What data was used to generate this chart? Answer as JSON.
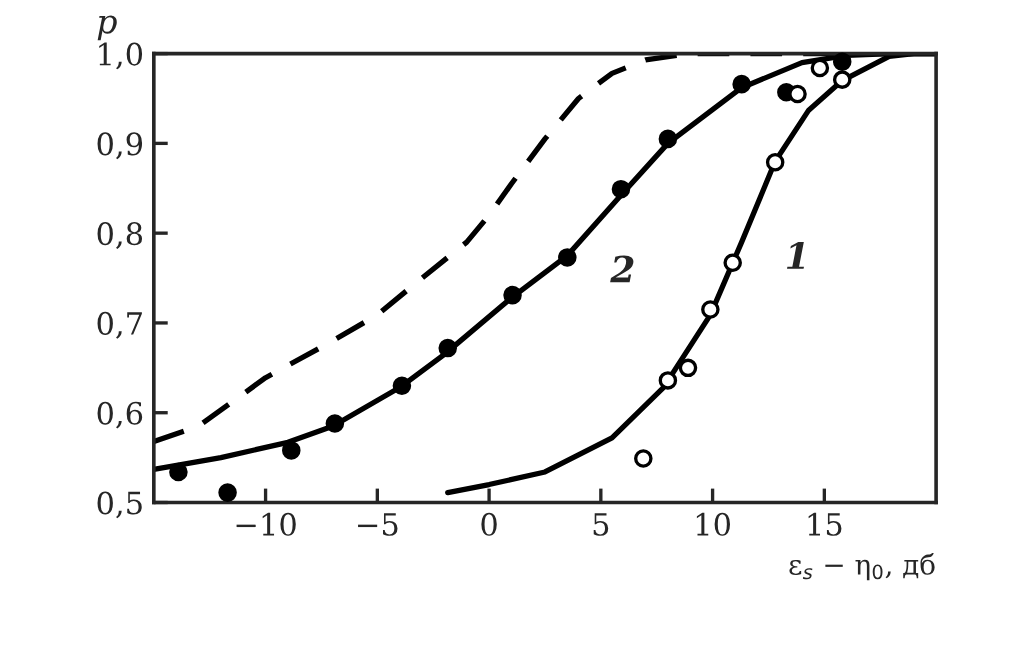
{
  "chart_data": {
    "type": "line",
    "xlabel": "ε$_{s}$ − η$_{0}$, дб",
    "ylabel": "p",
    "xlim": [
      -15,
      20
    ],
    "ylim": [
      0.5,
      1.0
    ],
    "xticks": [
      {
        "value": -10,
        "label": "−10"
      },
      {
        "value": -5,
        "label": "−5"
      },
      0,
      5,
      10,
      15
    ],
    "yticks": [
      {
        "value": 0.5,
        "label": "0,5"
      },
      {
        "value": 0.6,
        "label": "0,6"
      },
      {
        "value": 0.7,
        "label": "0,7"
      },
      {
        "value": 0.8,
        "label": "0,8"
      },
      {
        "value": 0.9,
        "label": "0,9"
      },
      {
        "value": 1.0,
        "label": "1,0"
      }
    ],
    "grid": false,
    "series": [
      {
        "line_style": "dashed",
        "color": "#000000",
        "x": [
          -15,
          -13,
          -10,
          -7,
          -5,
          -3,
          -1,
          0,
          1,
          2.5,
          4,
          5.5,
          7,
          9,
          20
        ],
        "values": [
          0.568,
          0.585,
          0.639,
          0.68,
          0.709,
          0.75,
          0.79,
          0.82,
          0.855,
          0.905,
          0.95,
          0.978,
          0.993,
          1.0,
          1.0
        ]
      },
      {
        "name": "2",
        "line_style": "solid",
        "color": "#000000",
        "x": [
          -15,
          -12,
          -9,
          -7,
          -4,
          -2,
          1,
          3.5,
          6,
          8,
          11.3,
          14,
          16,
          18,
          20
        ],
        "values": [
          0.537,
          0.55,
          0.567,
          0.585,
          0.628,
          0.665,
          0.728,
          0.775,
          0.845,
          0.9,
          0.962,
          0.99,
          0.998,
          1.0,
          1.0
        ]
      },
      {
        "name": "1",
        "line_style": "solid",
        "color": "#000000",
        "x": [
          -1.85,
          0,
          2.5,
          5.5,
          7.8,
          9.9,
          11.3,
          12.8,
          14.3,
          15.8,
          17.9,
          19,
          20
        ],
        "values": [
          0.511,
          0.52,
          0.534,
          0.572,
          0.628,
          0.709,
          0.79,
          0.88,
          0.937,
          0.97,
          0.997,
          1.0,
          1.0
        ]
      },
      {
        "type": "scatter",
        "marker": "circle",
        "color": "#000000",
        "x": [
          -13.9,
          -11.7,
          -8.85,
          -6.9,
          -3.9,
          -1.85,
          1.05,
          3.5,
          5.9,
          8.0,
          11.3,
          13.3,
          15.8
        ],
        "values": [
          0.534,
          0.511,
          0.558,
          0.588,
          0.63,
          0.672,
          0.731,
          0.773,
          0.849,
          0.905,
          0.966,
          0.957,
          0.991
        ]
      },
      {
        "type": "scatter",
        "marker": "circle",
        "color": "#ffffff",
        "x": [
          6.9,
          8.0,
          8.9,
          9.9,
          10.9,
          12.8,
          13.8,
          14.8,
          15.8
        ],
        "values": [
          0.549,
          0.636,
          0.65,
          0.715,
          0.767,
          0.879,
          0.955,
          0.984,
          0.971
        ]
      }
    ]
  }
}
